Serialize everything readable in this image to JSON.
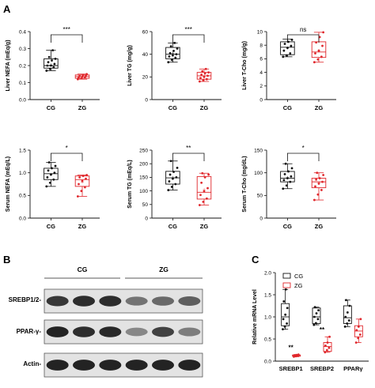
{
  "panels": {
    "a": "A",
    "b": "B",
    "c": "C"
  },
  "colors": {
    "cg": "#111111",
    "zg": "#e0262b"
  },
  "chart_data": [
    {
      "type": "box",
      "ylabel": "Liver NEFA (mEq/g)",
      "ylim": [
        0,
        0.4
      ],
      "yticks": [
        0.0,
        0.1,
        0.2,
        0.3,
        0.4
      ],
      "categories": [
        "CG",
        "ZG"
      ],
      "significance": "***",
      "boxes": [
        {
          "group": "CG",
          "min": 0.17,
          "q1": 0.185,
          "median": 0.2,
          "q3": 0.24,
          "max": 0.29,
          "mean": 0.205,
          "points": [
            0.17,
            0.18,
            0.19,
            0.2,
            0.2,
            0.21,
            0.22,
            0.23,
            0.24,
            0.25,
            0.29
          ]
        },
        {
          "group": "ZG",
          "min": 0.12,
          "q1": 0.125,
          "median": 0.135,
          "q3": 0.145,
          "max": 0.15,
          "mean": 0.135,
          "points": [
            0.12,
            0.125,
            0.13,
            0.13,
            0.135,
            0.14,
            0.14,
            0.145,
            0.15
          ]
        }
      ]
    },
    {
      "type": "box",
      "ylabel": "Liver TG (mg/g)",
      "ylim": [
        0,
        60
      ],
      "yticks": [
        0,
        20,
        40,
        60
      ],
      "categories": [
        "CG",
        "ZG"
      ],
      "significance": "***",
      "boxes": [
        {
          "group": "CG",
          "min": 33,
          "q1": 36,
          "median": 40,
          "q3": 46,
          "max": 50,
          "mean": 41,
          "points": [
            33,
            35,
            37,
            38,
            39,
            40,
            41,
            43,
            45,
            47,
            50
          ]
        },
        {
          "group": "ZG",
          "min": 16,
          "q1": 18,
          "median": 21,
          "q3": 24,
          "max": 27,
          "mean": 21,
          "points": [
            16,
            17,
            18,
            19,
            20,
            21,
            22,
            23,
            24,
            25,
            27
          ]
        }
      ]
    },
    {
      "type": "box",
      "ylabel": "Liver T-Cho (mg/g)",
      "ylim": [
        0,
        10
      ],
      "yticks": [
        0,
        2,
        4,
        6,
        8,
        10
      ],
      "categories": [
        "CG",
        "ZG"
      ],
      "significance": "ns",
      "boxes": [
        {
          "group": "CG",
          "min": 6.3,
          "q1": 6.6,
          "median": 7.7,
          "q3": 8.5,
          "max": 8.9,
          "mean": 7.6,
          "points": [
            6.3,
            6.5,
            6.8,
            7.2,
            7.6,
            7.9,
            8.2,
            8.5,
            8.8
          ]
        },
        {
          "group": "ZG",
          "min": 5.5,
          "q1": 6.2,
          "median": 7.0,
          "q3": 8.5,
          "max": 9.9,
          "mean": 7.2,
          "points": [
            5.5,
            5.9,
            6.3,
            6.8,
            7.2,
            7.9,
            8.4,
            9.2,
            9.9
          ]
        }
      ]
    },
    {
      "type": "box",
      "ylabel": "Serum NEFA (mEq/L)",
      "ylim": [
        0,
        1.5
      ],
      "yticks": [
        0.0,
        0.5,
        1.0,
        1.5
      ],
      "categories": [
        "CG",
        "ZG"
      ],
      "significance": "*",
      "boxes": [
        {
          "group": "CG",
          "min": 0.7,
          "q1": 0.85,
          "median": 0.98,
          "q3": 1.1,
          "max": 1.23,
          "mean": 0.97,
          "points": [
            0.7,
            0.78,
            0.85,
            0.9,
            0.96,
            1.0,
            1.05,
            1.1,
            1.15,
            1.23
          ]
        },
        {
          "group": "ZG",
          "min": 0.48,
          "q1": 0.7,
          "median": 0.85,
          "q3": 0.93,
          "max": 0.95,
          "mean": 0.8,
          "points": [
            0.48,
            0.6,
            0.68,
            0.75,
            0.82,
            0.87,
            0.9,
            0.93,
            0.95
          ]
        }
      ]
    },
    {
      "type": "box",
      "ylabel": "Serum TG (mEq/L)",
      "ylim": [
        0,
        250
      ],
      "yticks": [
        0,
        50,
        100,
        150,
        200,
        250
      ],
      "categories": [
        "CG",
        "ZG"
      ],
      "significance": "**",
      "boxes": [
        {
          "group": "CG",
          "min": 103,
          "q1": 125,
          "median": 148,
          "q3": 172,
          "max": 210,
          "mean": 150,
          "points": [
            103,
            115,
            125,
            135,
            145,
            150,
            160,
            170,
            185,
            210
          ]
        },
        {
          "group": "ZG",
          "min": 48,
          "q1": 70,
          "median": 95,
          "q3": 153,
          "max": 165,
          "mean": 105,
          "points": [
            48,
            60,
            72,
            85,
            98,
            110,
            130,
            150,
            160,
            165
          ]
        }
      ]
    },
    {
      "type": "box",
      "ylabel": "Serum T-Cho (mg/dL)",
      "ylim": [
        0,
        150
      ],
      "yticks": [
        0,
        50,
        100,
        150
      ],
      "categories": [
        "CG",
        "ZG"
      ],
      "significance": "*",
      "boxes": [
        {
          "group": "CG",
          "min": 65,
          "q1": 80,
          "median": 88,
          "q3": 103,
          "max": 120,
          "mean": 90,
          "points": [
            65,
            72,
            80,
            84,
            88,
            92,
            97,
            103,
            110,
            120
          ]
        },
        {
          "group": "ZG",
          "min": 40,
          "q1": 67,
          "median": 80,
          "q3": 88,
          "max": 100,
          "mean": 78,
          "points": [
            40,
            52,
            62,
            70,
            76,
            80,
            85,
            88,
            95,
            100
          ]
        }
      ]
    },
    {
      "type": "box",
      "ylabel": "Relative mRNA Level",
      "ylim": [
        0,
        2.0
      ],
      "yticks": [
        0.0,
        0.5,
        1.0,
        1.5,
        2.0
      ],
      "categories": [
        "SREBP1",
        "SREBP2",
        "PPARγ"
      ],
      "legend": [
        "CG",
        "ZG"
      ],
      "significance": [
        "**",
        "**",
        ""
      ],
      "boxes": [
        {
          "category": "SREBP1",
          "group": "CG",
          "min": 0.72,
          "q1": 0.8,
          "median": 1.0,
          "q3": 1.3,
          "max": 1.62,
          "points": [
            0.72,
            0.78,
            0.85,
            0.95,
            1.05,
            1.2,
            1.35,
            1.62
          ]
        },
        {
          "category": "SREBP1",
          "group": "ZG",
          "min": 0.1,
          "q1": 0.11,
          "median": 0.13,
          "q3": 0.14,
          "max": 0.15,
          "points": [
            0.1,
            0.11,
            0.12,
            0.13,
            0.14,
            0.15
          ]
        },
        {
          "category": "SREBP2",
          "group": "CG",
          "min": 0.82,
          "q1": 0.85,
          "median": 1.0,
          "q3": 1.2,
          "max": 1.22,
          "points": [
            0.82,
            0.86,
            0.95,
            1.0,
            1.08,
            1.15,
            1.22
          ]
        },
        {
          "category": "SREBP2",
          "group": "ZG",
          "min": 0.2,
          "q1": 0.22,
          "median": 0.33,
          "q3": 0.42,
          "max": 0.55,
          "points": [
            0.2,
            0.25,
            0.3,
            0.35,
            0.42,
            0.55
          ]
        },
        {
          "category": "PPARγ",
          "group": "CG",
          "min": 0.78,
          "q1": 0.85,
          "median": 0.98,
          "q3": 1.25,
          "max": 1.38,
          "points": [
            0.78,
            0.85,
            0.92,
            1.0,
            1.1,
            1.25,
            1.38
          ]
        },
        {
          "category": "PPARγ",
          "group": "ZG",
          "min": 0.42,
          "q1": 0.55,
          "median": 0.68,
          "q3": 0.8,
          "max": 0.95,
          "points": [
            0.42,
            0.52,
            0.6,
            0.7,
            0.78,
            0.95
          ]
        }
      ]
    }
  ],
  "blot": {
    "groups": [
      "CG",
      "ZG"
    ],
    "rows": [
      "SREBP1/2-",
      "PPAR-γ-",
      "Actin-"
    ],
    "band_intensity": [
      [
        0.85,
        0.9,
        0.9,
        0.55,
        0.6,
        0.65
      ],
      [
        0.95,
        0.9,
        0.92,
        0.45,
        0.8,
        0.5
      ],
      [
        0.95,
        0.95,
        0.95,
        0.95,
        0.95,
        0.95
      ]
    ]
  }
}
